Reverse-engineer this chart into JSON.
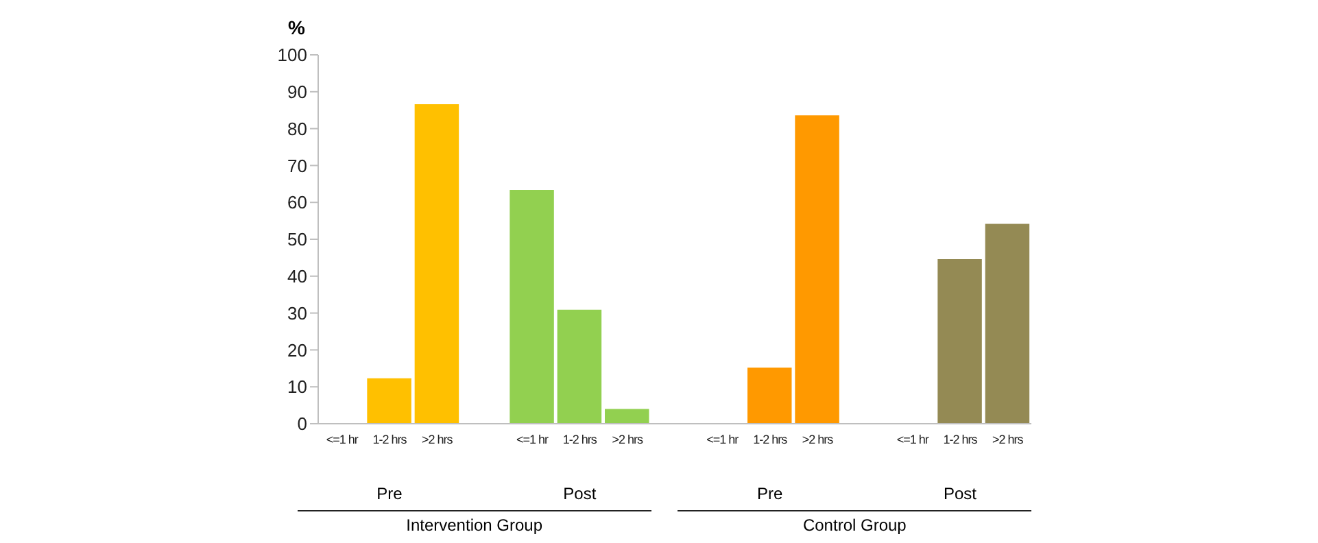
{
  "chart_data": {
    "type": "bar",
    "ylabel": "%",
    "categories": [
      "<=1 hr",
      "1-2 hrs",
      ">2 hrs",
      null,
      "<=1 hr",
      "1-2 hrs",
      ">2 hrs",
      null,
      "<=1 hr",
      "1-2 hrs",
      ">2 hrs",
      null,
      "<=1 hr",
      "1-2 hrs",
      ">2 hrs"
    ],
    "values": [
      0,
      12.3,
      86.6,
      null,
      63.4,
      30.9,
      4.0,
      null,
      0,
      15.2,
      83.6,
      null,
      0,
      44.6,
      54.2
    ],
    "colors": [
      "#ffc000",
      "#ffc000",
      "#ffc000",
      null,
      "#92d050",
      "#92d050",
      "#92d050",
      null,
      "#ff9900",
      "#ff9900",
      "#ff9900",
      null,
      "#948a54",
      "#948a54",
      "#948a54"
    ],
    "ylim": [
      0,
      100
    ],
    "yticks": [
      0,
      10,
      20,
      30,
      40,
      50,
      60,
      70,
      80,
      90,
      100
    ],
    "grid": false,
    "annotations": [
      "Pre",
      "Post",
      "Pre",
      "Post",
      "Intervention Group",
      "Control Group"
    ]
  }
}
